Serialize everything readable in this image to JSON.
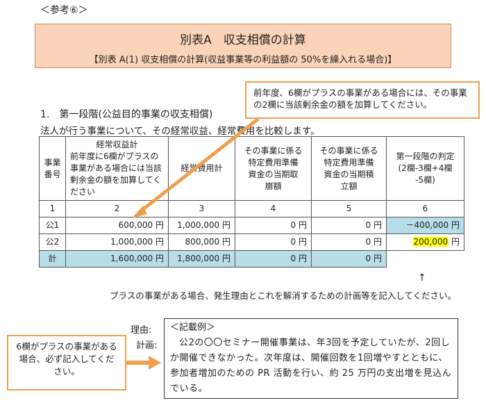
{
  "reference_label": "＜参考⑥＞",
  "title": {
    "main": "別表A　収支相償の計算",
    "sub": "【別表 A(1) 収支相償の計算(収益事業等の利益額の 50%を繰入れる場合)】"
  },
  "callout_top": "前年度、6欄がプラスの事業がある場合には、その事業の2欄に当該剰余金の額を加算してください。",
  "section": {
    "heading": "1.　第一段階(公益目的事業の収支相償)",
    "description": "法人が行う事業について、その経常収益、経常費用を比較します。"
  },
  "table": {
    "headers": [
      "事業\n番号",
      "経常収益計\n前年度に6欄がプラスの事業がある場合には当該剰余金の額を加算してください",
      "経常費用計",
      "その事業に係る特定費用準備資金の当期取崩額",
      "その事業に係る特定費用準備資金の当期積立額",
      "第一段階の判定\n(2欄-3欄+4欄-5欄)"
    ],
    "column_numbers": [
      "1",
      "2",
      "3",
      "4",
      "5",
      "6"
    ],
    "rows": [
      {
        "id": "公1",
        "revenue": "600,000 円",
        "cost": "1,000,000 円",
        "withdrawal": "0 円",
        "accumulation": "0 円",
        "judgement": "－400,000 円"
      },
      {
        "id": "公2",
        "revenue": "1,000,000 円",
        "cost": "800,000 円",
        "withdrawal": "0 円",
        "accumulation": "0 円",
        "judgement_value": "200,000",
        "judgement_unit": "円"
      }
    ],
    "total": {
      "label": "計",
      "revenue": "1,600,000 円",
      "cost": "1,800,000 円",
      "withdrawal": "0 円",
      "accumulation": "0 円"
    }
  },
  "up_arrow": "↑",
  "plus_note": "プラスの事業がある場合、発生理由とこれを解消するための計画等を記入してください。",
  "reason_label": "理由:",
  "plan_label": "計画:",
  "example": {
    "heading": "＜記載例＞",
    "body": "公2の〇〇セミナー開催事業は、年3回を予定していたが、2回しか開催できなかった。次年度は、開催回数を1回増やすとともに、参加者増加のための PR 活動を行い、約 25 万円の支出増を見込んでいる。"
  },
  "callout_left": "6欄がプラスの事業がある場合、必ず記入してください。",
  "colors": {
    "title_bg": "#fbd3b8",
    "callout_border": "#f0a04c",
    "cell_blue": "#b7dde8",
    "highlight": "#ffff00"
  }
}
